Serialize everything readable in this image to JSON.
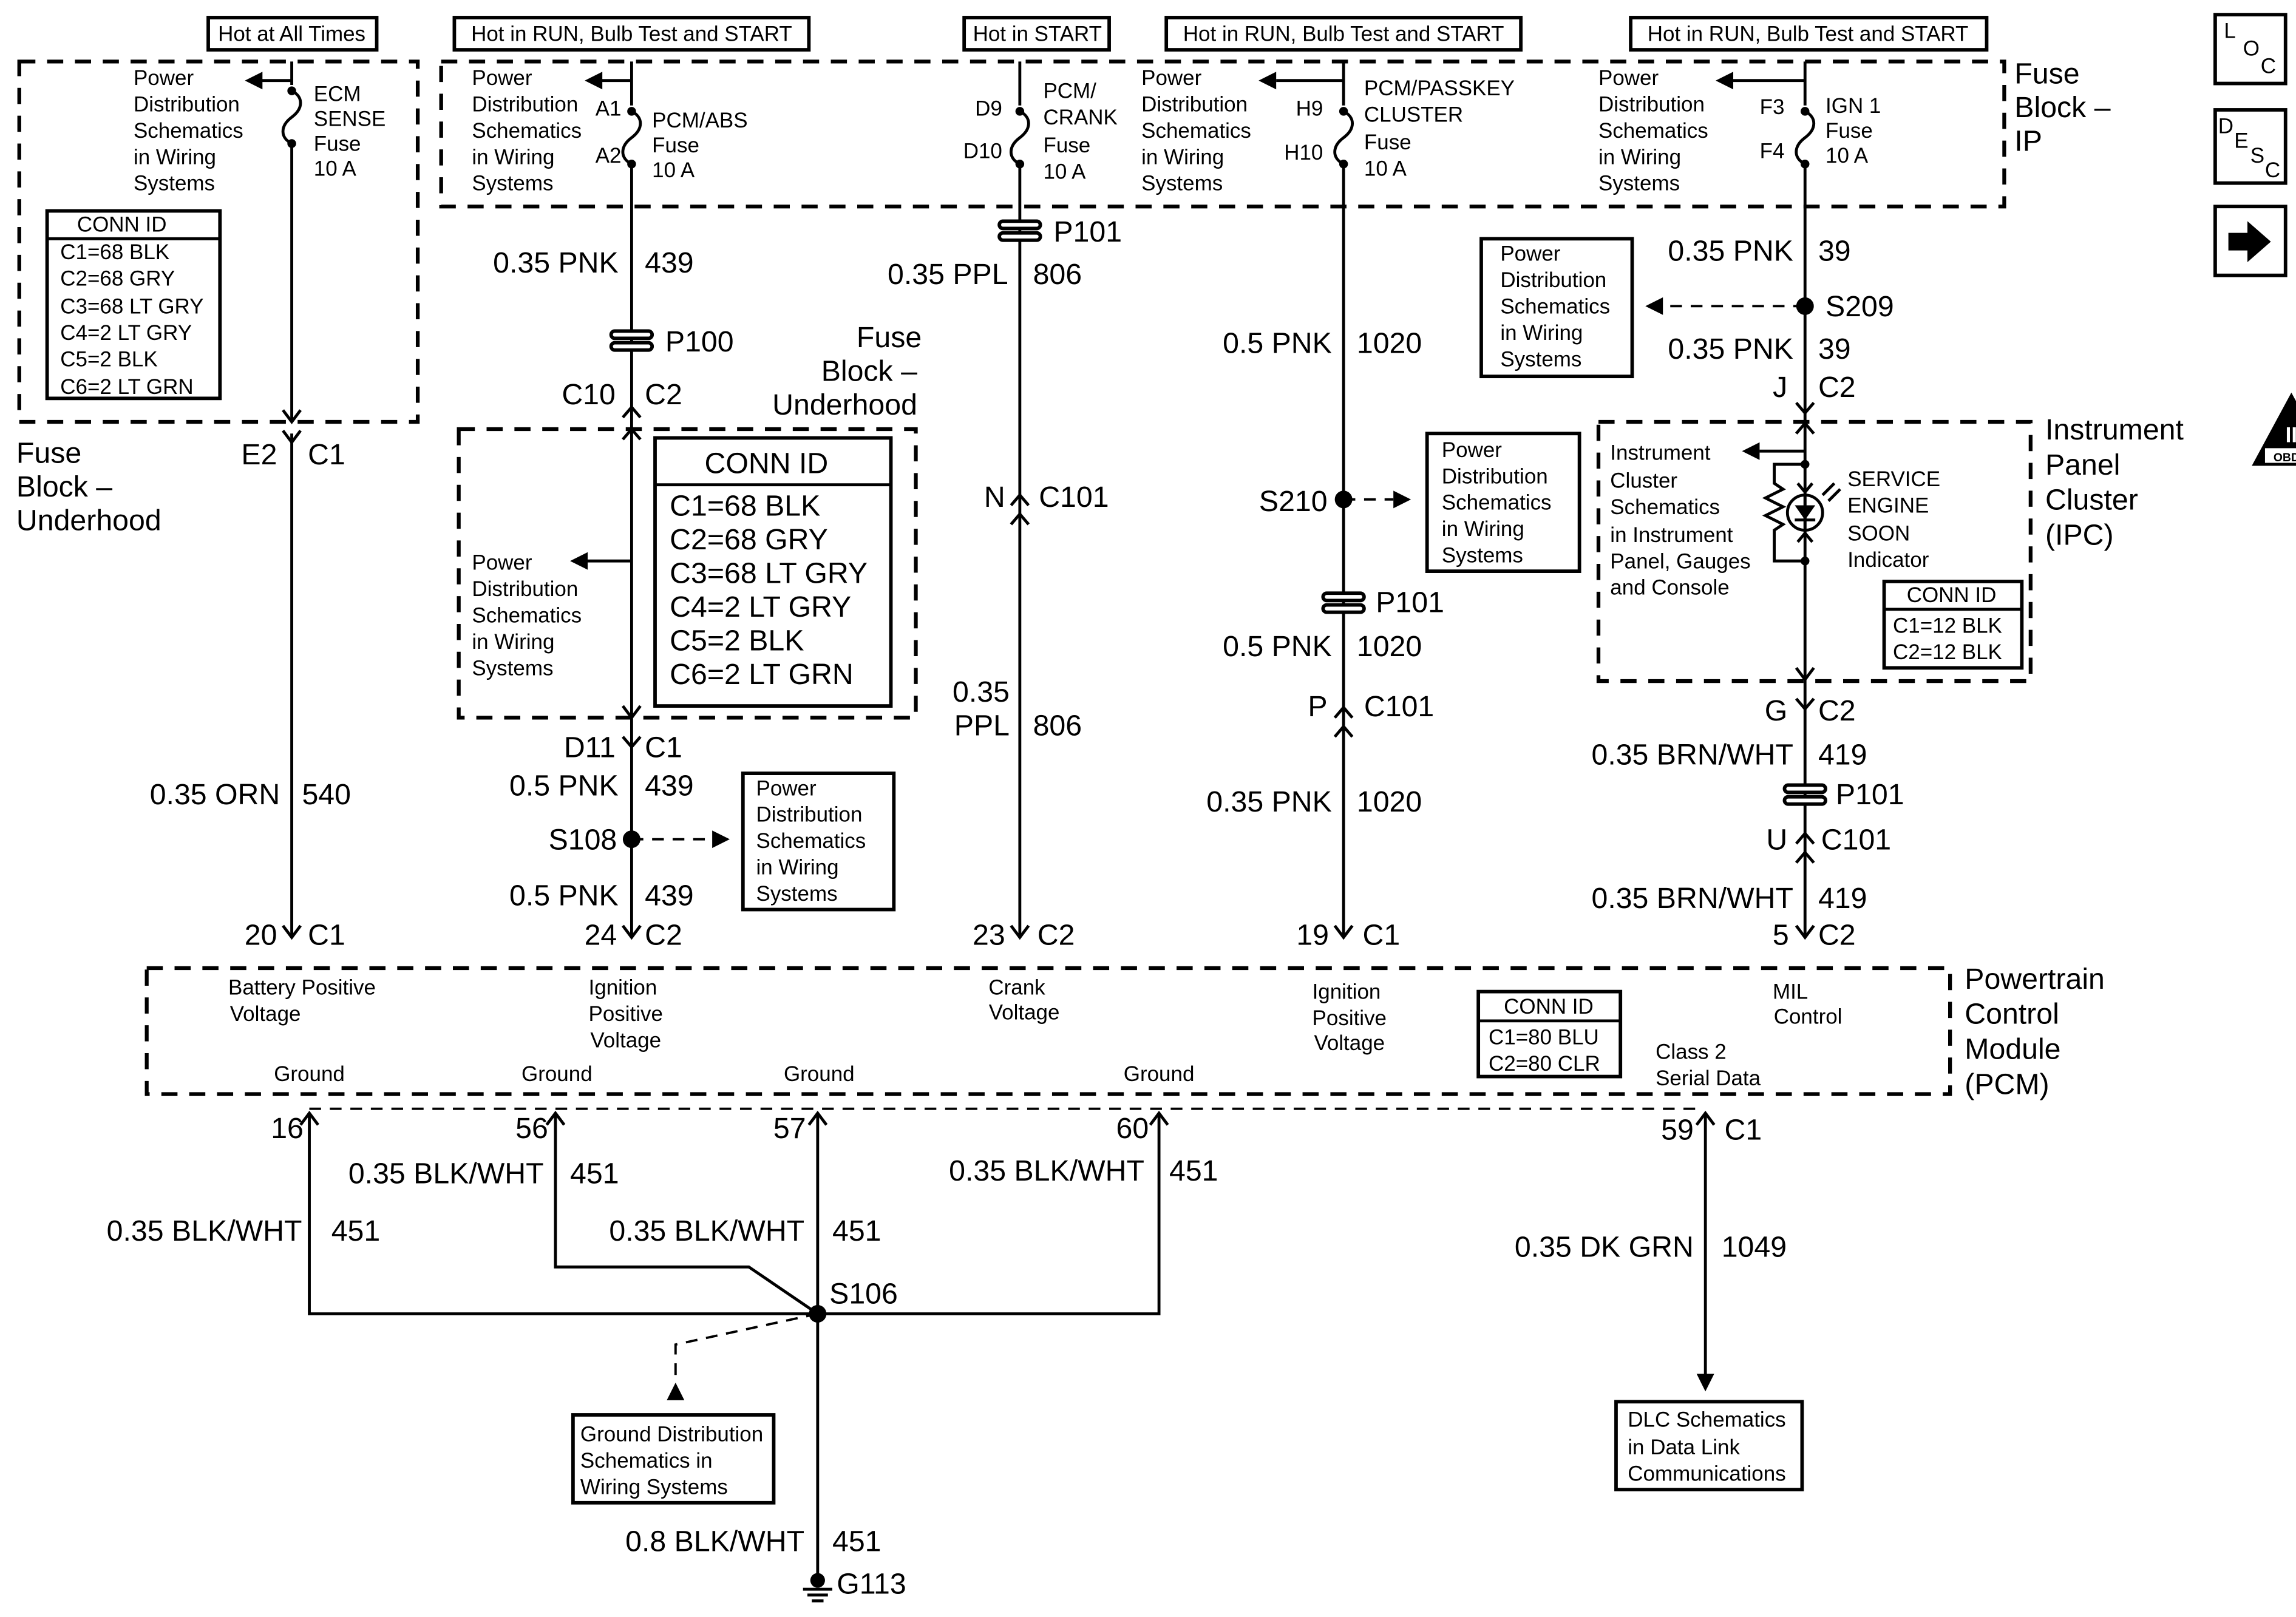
{
  "status_boxes": [
    "Hot at All Times",
    "Hot in RUN, Bulb Test and START",
    "Hot in START",
    "Hot in RUN, Bulb Test and START",
    "Hot in RUN, Bulb Test and START"
  ],
  "pd_ref": [
    "Power",
    "Distribution",
    "Schematics",
    "in Wiring",
    "Systems"
  ],
  "fuse_ecm": [
    "ECM",
    "SENSE",
    "Fuse",
    "10 A"
  ],
  "fuse_pcmabs": [
    "PCM/ABS",
    "Fuse",
    "10 A"
  ],
  "fuse_crank": [
    "PCM/",
    "CRANK",
    "Fuse",
    "10 A"
  ],
  "fuse_passkey": [
    "PCM/PASSKEY",
    "CLUSTER",
    "Fuse",
    "10 A"
  ],
  "fuse_ign": [
    "IGN 1",
    "Fuse",
    "10 A"
  ],
  "terminals": {
    "a1": "A1",
    "a2": "A2",
    "d9": "D9",
    "d10": "D10",
    "h9": "H9",
    "h10": "H10",
    "f3": "F3",
    "f4": "F4"
  },
  "conn_fbu_small": {
    "title": "CONN ID",
    "items": [
      "C1=68 BLK",
      "C2=68 GRY",
      "C3=68 LT GRY",
      "C4=2 LT GRY",
      "C5=2 BLK",
      "C6=2 LT GRN"
    ]
  },
  "conn_fbu_large": {
    "title": "CONN ID",
    "items": [
      "C1=68 BLK",
      "C2=68 GRY",
      "C3=68 LT GRY",
      "C4=2 LT GRY",
      "C5=2 BLK",
      "C6=2 LT GRN"
    ]
  },
  "conn_ipc": {
    "title": "CONN ID",
    "items": [
      "C1=12 BLK",
      "C2=12 BLK"
    ]
  },
  "conn_pcm": {
    "title": "CONN ID",
    "items": [
      "C1=80 BLU",
      "C2=80 CLR"
    ]
  },
  "component_names": {
    "fbu_left": [
      "Fuse",
      "Block –",
      "Underhood"
    ],
    "fbu_mid": [
      "Fuse",
      "Block –",
      "Underhood"
    ],
    "fbip": [
      "Fuse",
      "Block –",
      "IP"
    ],
    "ipc": [
      "Instrument",
      "Panel",
      "Cluster",
      "(IPC)"
    ],
    "pcm": [
      "Powertrain",
      "Control",
      "Module",
      "(PCM)"
    ]
  },
  "ipc_ref": [
    "Instrument",
    "Cluster",
    "Schematics",
    "in Instrument",
    "Panel, Gauges",
    "and Console"
  ],
  "ses_indicator": [
    "SERVICE",
    "ENGINE",
    "SOON",
    "Indicator"
  ],
  "pcm_pins": {
    "batt": [
      "Battery Positive",
      "Voltage"
    ],
    "ign1": [
      "Ignition",
      "Positive",
      "Voltage"
    ],
    "crank": [
      "Crank",
      "Voltage"
    ],
    "ign2": [
      "Ignition",
      "Positive",
      "Voltage"
    ],
    "mil": [
      "MIL",
      "Control"
    ],
    "serial": [
      "Class 2",
      "Serial Data"
    ],
    "ground": "Ground"
  },
  "wires": {
    "w540": {
      "color": "0.35 ORN",
      "circuit": "540"
    },
    "w439a": {
      "color": "0.35 PNK",
      "circuit": "439"
    },
    "w439b": {
      "color": "0.5 PNK",
      "circuit": "439"
    },
    "w439c": {
      "color": "0.5 PNK",
      "circuit": "439"
    },
    "w806a": {
      "color": "0.35 PPL",
      "circuit": "806"
    },
    "w806b": {
      "color": [
        "0.35",
        "PPL"
      ],
      "circuit": "806"
    },
    "w1020a": {
      "color": "0.5 PNK",
      "circuit": "1020"
    },
    "w1020b": {
      "color": "0.5 PNK",
      "circuit": "1020"
    },
    "w1020c": {
      "color": "0.35 PNK",
      "circuit": "1020"
    },
    "w39a": {
      "color": "0.35 PNK",
      "circuit": "39"
    },
    "w39b": {
      "color": "0.35 PNK",
      "circuit": "39"
    },
    "w419a": {
      "color": "0.35 BRN/WHT",
      "circuit": "419"
    },
    "w419b": {
      "color": "0.35 BRN/WHT",
      "circuit": "419"
    },
    "w451_56": {
      "color": "0.35 BLK/WHT",
      "circuit": "451"
    },
    "w451_60": {
      "color": "0.35 BLK/WHT",
      "circuit": "451"
    },
    "w451_16": {
      "color": "0.35 BLK/WHT",
      "circuit": "451"
    },
    "w451_57": {
      "color": "0.35 BLK/WHT",
      "circuit": "451"
    },
    "w451_g": {
      "color": "0.8 BLK/WHT",
      "circuit": "451"
    },
    "w1049": {
      "color": "0.35 DK GRN",
      "circuit": "1049"
    }
  },
  "connectors": {
    "e2": "E2",
    "c1": "C1",
    "c10": "C10",
    "c2": "C2",
    "d11": "D11",
    "n": "N",
    "c101": "C101",
    "p": "P",
    "j": "J",
    "g": "G",
    "u": "U",
    "p20": "20",
    "p24": "24",
    "p23": "23",
    "p19": "19",
    "p5": "5",
    "p16": "16",
    "p56": "56",
    "p57": "57",
    "p60": "60",
    "p59": "59"
  },
  "splices": {
    "p100": "P100",
    "p101": "P101",
    "s108": "S108",
    "s210": "S210",
    "s209": "S209",
    "s106": "S106",
    "g113": "G113"
  },
  "ground_ref": [
    "Ground Distribution",
    "Schematics in",
    "Wiring Systems"
  ],
  "dlc_ref": [
    "DLC Schematics",
    "in Data Link",
    "Communications"
  ],
  "nav_icons": {
    "loc": [
      "L",
      "O",
      "C"
    ],
    "desc": [
      "D",
      "E",
      "S",
      "C"
    ],
    "obd": [
      "II",
      "OBD II"
    ]
  }
}
